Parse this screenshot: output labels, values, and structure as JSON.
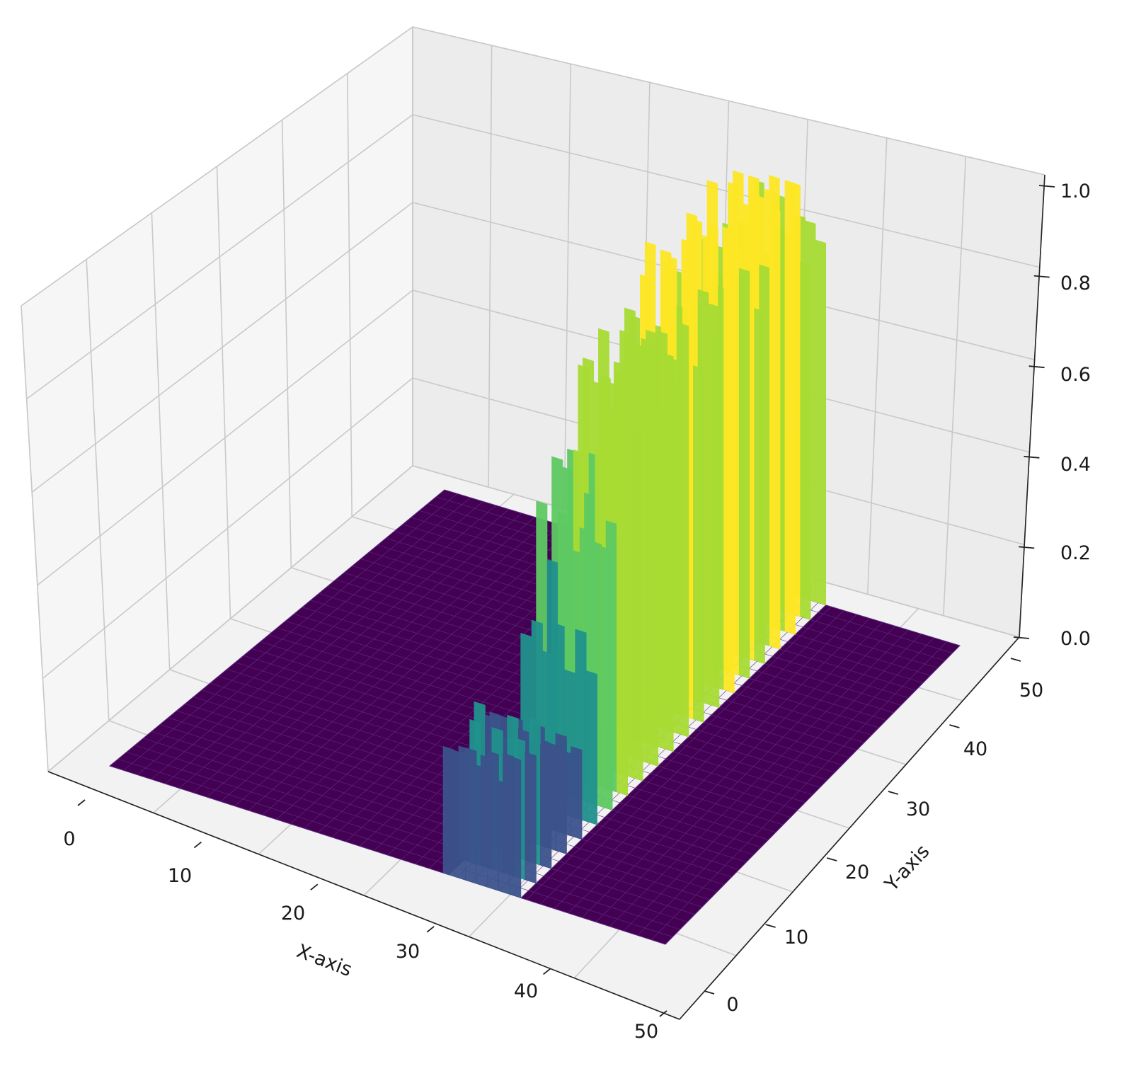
{
  "chart_data": {
    "type": "surface-3d",
    "title": "",
    "xlabel": "X-axis",
    "ylabel": "Y-axis",
    "zlabel": "",
    "xlim": [
      0,
      50
    ],
    "ylim": [
      0,
      50
    ],
    "zlim": [
      0,
      1
    ],
    "xticks": [
      "0",
      "10",
      "20",
      "30",
      "40",
      "50"
    ],
    "yticks": [
      "0",
      "10",
      "20",
      "30",
      "40",
      "50"
    ],
    "zticks": [
      "0.0",
      "0.2",
      "0.4",
      "0.6",
      "0.8",
      "1.0"
    ],
    "colormap": "viridis",
    "grid": true,
    "description_of_surface": {
      "floor_value": 0,
      "ridge_x_range": [
        30,
        37
      ],
      "ridge_profile_by_y": [
        {
          "y": 0,
          "z_max": 0.3
        },
        {
          "y": 5,
          "z_max": 0.32
        },
        {
          "y": 10,
          "z_max": 0.2
        },
        {
          "y": 15,
          "z_max": 0.62
        },
        {
          "y": 20,
          "z_max": 0.86
        },
        {
          "y": 25,
          "z_max": 0.88
        },
        {
          "y": 30,
          "z_max": 0.95
        },
        {
          "y": 35,
          "z_max": 0.98
        },
        {
          "y": 40,
          "z_max": 0.96
        },
        {
          "y": 45,
          "z_max": 1.0
        },
        {
          "y": 50,
          "z_max": 0.88
        }
      ]
    }
  }
}
